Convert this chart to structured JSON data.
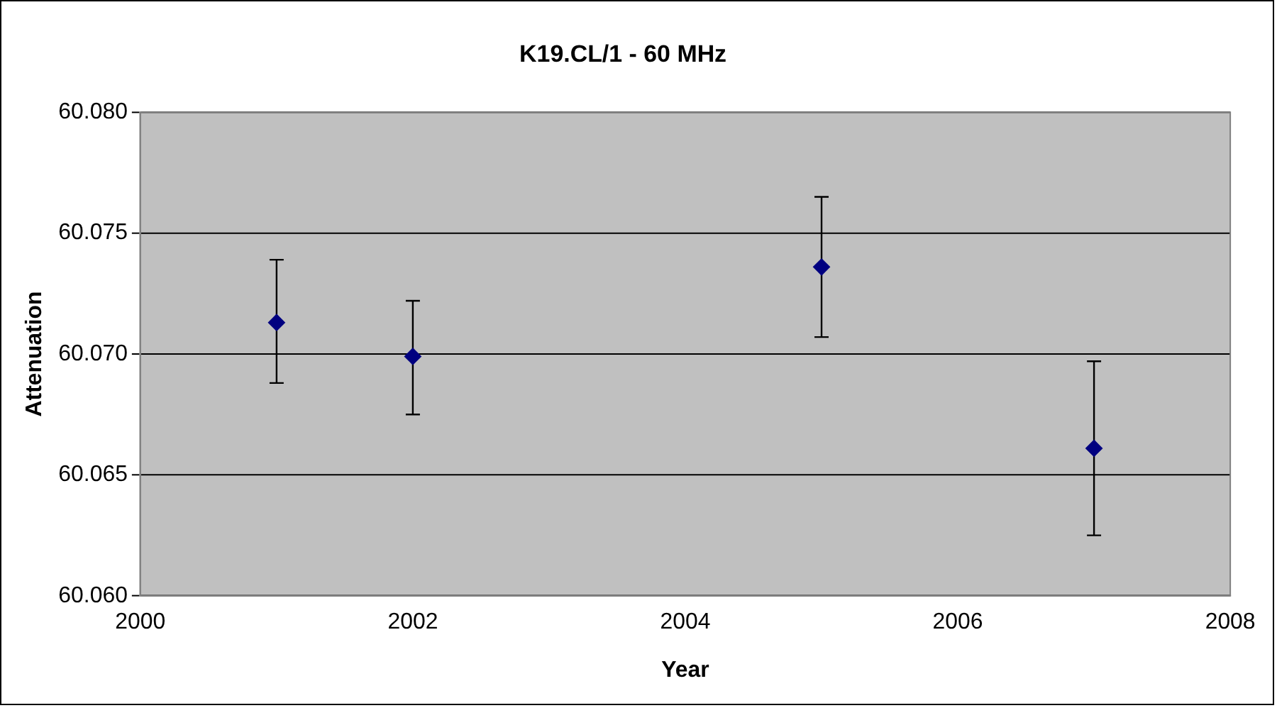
{
  "chart_data": {
    "type": "scatter",
    "title": "K19.CL/1 - 60 MHz",
    "xlabel": "Year",
    "ylabel": "Attenuation",
    "x": [
      2001,
      2002,
      2005,
      2007
    ],
    "series": [
      {
        "color": "#000080",
        "values": [
          60.0713,
          60.0699,
          60.0736,
          60.0661
        ],
        "errors": [
          [
            60.0688,
            60.0739
          ],
          [
            60.0675,
            60.0722
          ],
          [
            60.0707,
            60.0765
          ],
          [
            60.0625,
            60.0697
          ]
        ]
      }
    ],
    "xlim": [
      2000,
      2008
    ],
    "xticks": [
      2000,
      2002,
      2004,
      2006,
      2008
    ],
    "ylim": [
      60.06,
      60.08
    ],
    "yticks": [
      {
        "value": 60.06,
        "label": "60.060"
      },
      {
        "value": 60.065,
        "label": "60.065"
      },
      {
        "value": 60.07,
        "label": "60.070"
      },
      {
        "value": 60.075,
        "label": "60.075"
      },
      {
        "value": 60.08,
        "label": "60.080"
      }
    ],
    "grid": "y",
    "marker": "diamond",
    "legend": false
  }
}
